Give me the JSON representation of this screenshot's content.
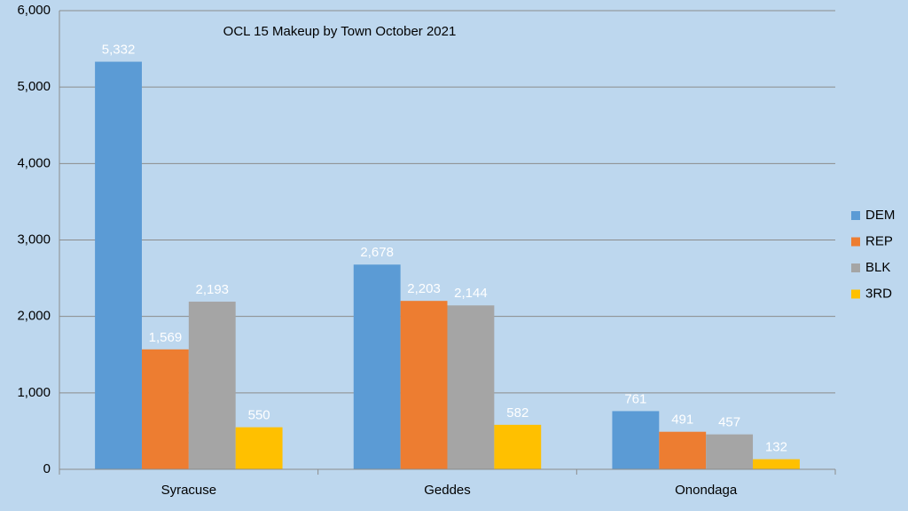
{
  "chart_data": {
    "type": "bar",
    "title": "OCL 15 Makeup by Town October 2021",
    "categories": [
      "Syracuse",
      "Geddes",
      "Onondaga"
    ],
    "series": [
      {
        "name": "DEM",
        "color": "#5b9bd5",
        "values": [
          5332,
          2678,
          761
        ],
        "value_labels": [
          "5,332",
          "2,678",
          "761"
        ]
      },
      {
        "name": "REP",
        "color": "#ed7d31",
        "values": [
          1569,
          2203,
          491
        ],
        "value_labels": [
          "1,569",
          "2,203",
          "491"
        ]
      },
      {
        "name": "BLK",
        "color": "#a5a5a5",
        "values": [
          2193,
          2144,
          457
        ],
        "value_labels": [
          "2,193",
          "2,144",
          "457"
        ]
      },
      {
        "name": "3RD",
        "color": "#ffc000",
        "values": [
          550,
          582,
          132
        ],
        "value_labels": [
          "550",
          "582",
          "132"
        ]
      }
    ],
    "ylim": [
      0,
      6000
    ],
    "yticks": [
      0,
      {
        "value": 1000,
        "label": "1,000"
      },
      {
        "value": 2000,
        "label": "2,000"
      },
      {
        "value": 3000,
        "label": "3,000"
      },
      {
        "value": 4000,
        "label": "4,000"
      },
      {
        "value": 5000,
        "label": "5,000"
      },
      {
        "value": 6000,
        "label": "6,000"
      }
    ],
    "grid": true,
    "legend": "right"
  }
}
